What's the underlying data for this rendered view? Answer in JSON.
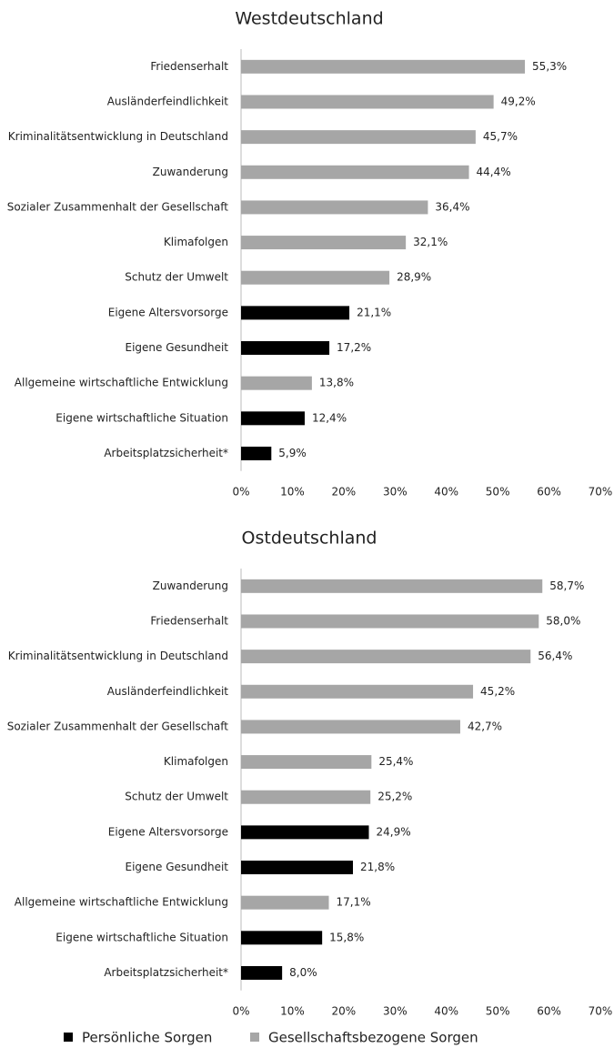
{
  "chart_data": [
    {
      "type": "bar",
      "title": "Westdeutschland",
      "categories": [
        "Friedenserhalt",
        "Ausländerfeindlichkeit",
        "Kriminalitätsentwicklung in Deutschland",
        "Zuwanderung",
        "Sozialer Zusammenhalt der Gesellschaft",
        "Klimafolgen",
        "Schutz der Umwelt",
        "Eigene Altersvorsorge",
        "Eigene Gesundheit",
        "Allgemeine wirtschaftliche Entwicklung",
        "Eigene wirtschaftliche Situation",
        "Arbeitsplatzsicherheit*"
      ],
      "values": [
        55.3,
        49.2,
        45.7,
        44.4,
        36.4,
        32.1,
        28.9,
        21.1,
        17.2,
        13.8,
        12.4,
        5.9
      ],
      "value_labels": [
        "55,3%",
        "49,2%",
        "45,7%",
        "44,4%",
        "36,4%",
        "32,1%",
        "28,9%",
        "21,1%",
        "17,2%",
        "13,8%",
        "12,4%",
        "5,9%"
      ],
      "colors": [
        "#a6a6a6",
        "#a6a6a6",
        "#a6a6a6",
        "#a6a6a6",
        "#a6a6a6",
        "#a6a6a6",
        "#a6a6a6",
        "#000000",
        "#000000",
        "#a6a6a6",
        "#000000",
        "#000000"
      ],
      "xlim": [
        0,
        70
      ],
      "xticks": [
        {
          "value": 0,
          "label": "0%"
        },
        {
          "value": 10,
          "label": "10%"
        },
        {
          "value": 20,
          "label": "20%"
        },
        {
          "value": 30,
          "label": "30%"
        },
        {
          "value": 40,
          "label": "40%"
        },
        {
          "value": 50,
          "label": "50%"
        },
        {
          "value": 60,
          "label": "60%"
        },
        {
          "value": 70,
          "label": "70%"
        }
      ]
    },
    {
      "type": "bar",
      "title": "Ostdeutschland",
      "categories": [
        "Zuwanderung",
        "Friedenserhalt",
        "Kriminalitätsentwicklung in Deutschland",
        "Ausländerfeindlichkeit",
        "Sozialer Zusammenhalt der Gesellschaft",
        "Klimafolgen",
        "Schutz der Umwelt",
        "Eigene Altersvorsorge",
        "Eigene Gesundheit",
        "Allgemeine wirtschaftliche Entwicklung",
        "Eigene wirtschaftliche Situation",
        "Arbeitsplatzsicherheit*"
      ],
      "values": [
        58.7,
        58.0,
        56.4,
        45.2,
        42.7,
        25.4,
        25.2,
        24.9,
        21.8,
        17.1,
        15.8,
        8.0
      ],
      "value_labels": [
        "58,7%",
        "58,0%",
        "56,4%",
        "45,2%",
        "42,7%",
        "25,4%",
        "25,2%",
        "24,9%",
        "21,8%",
        "17,1%",
        "15,8%",
        "8,0%"
      ],
      "colors": [
        "#a6a6a6",
        "#a6a6a6",
        "#a6a6a6",
        "#a6a6a6",
        "#a6a6a6",
        "#a6a6a6",
        "#a6a6a6",
        "#000000",
        "#000000",
        "#a6a6a6",
        "#000000",
        "#000000"
      ],
      "xlim": [
        0,
        70
      ],
      "xticks": [
        {
          "value": 0,
          "label": "0%"
        },
        {
          "value": 10,
          "label": "10%"
        },
        {
          "value": 20,
          "label": "20%"
        },
        {
          "value": 30,
          "label": "30%"
        },
        {
          "value": 40,
          "label": "40%"
        },
        {
          "value": 50,
          "label": "50%"
        },
        {
          "value": 60,
          "label": "60%"
        },
        {
          "value": 70,
          "label": "70%"
        }
      ]
    }
  ],
  "legend": [
    {
      "name": "Persönliche Sorgen",
      "color": "#000000"
    },
    {
      "name": "Gesellschaftsbezogene Sorgen",
      "color": "#a6a6a6"
    }
  ]
}
